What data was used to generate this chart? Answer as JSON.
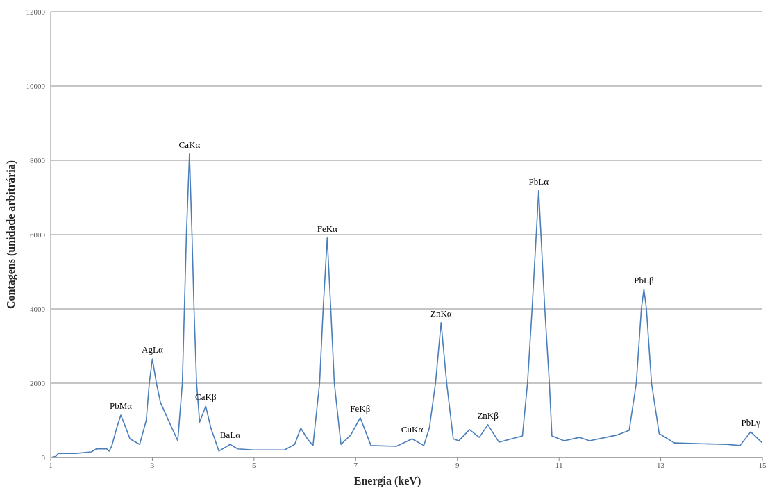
{
  "chart_data": {
    "type": "line",
    "xlabel": "Energia (keV)",
    "ylabel": "Contagens (unidade arbitrária)",
    "xlim": [
      1,
      15
    ],
    "xticks": [
      1,
      3,
      5,
      7,
      9,
      11,
      13,
      15
    ],
    "ylim": [
      0,
      12000
    ],
    "yticks": [
      0,
      2000,
      4000,
      6000,
      8000,
      10000,
      12000
    ],
    "grid": "y",
    "marker": "none",
    "series": [
      {
        "color": "#4a7ebb",
        "x": [
          1.0,
          1.1,
          1.15,
          1.5,
          1.8,
          1.9,
          2.1,
          2.15,
          2.2,
          2.3,
          2.38,
          2.45,
          2.56,
          2.75,
          2.88,
          2.94,
          3.0,
          3.08,
          3.16,
          3.3,
          3.5,
          3.59,
          3.63,
          3.67,
          3.73,
          3.78,
          3.82,
          3.87,
          3.93,
          4.05,
          4.15,
          4.31,
          4.53,
          4.68,
          5.0,
          5.6,
          5.8,
          5.92,
          6.05,
          6.16,
          6.29,
          6.36,
          6.44,
          6.51,
          6.58,
          6.71,
          6.9,
          7.09,
          7.3,
          7.8,
          8.11,
          8.34,
          8.45,
          8.57,
          8.68,
          8.79,
          8.92,
          9.03,
          9.24,
          9.43,
          9.6,
          9.82,
          10.28,
          10.38,
          10.47,
          10.6,
          10.72,
          10.81,
          10.86,
          11.1,
          11.4,
          11.6,
          12.13,
          12.38,
          12.52,
          12.62,
          12.67,
          12.72,
          12.82,
          12.97,
          13.27,
          14.3,
          14.56,
          14.77,
          15.0
        ],
        "values": [
          0,
          30,
          110,
          110,
          150,
          230,
          230,
          170,
          300,
          800,
          1140,
          900,
          500,
          350,
          1000,
          2000,
          2650,
          2000,
          1480,
          1050,
          450,
          2000,
          4000,
          6000,
          8170,
          6000,
          4000,
          2000,
          950,
          1380,
          800,
          170,
          350,
          230,
          200,
          200,
          350,
          790,
          500,
          320,
          2000,
          4000,
          5910,
          4000,
          2000,
          350,
          600,
          1070,
          320,
          300,
          500,
          320,
          800,
          2000,
          3630,
          2000,
          500,
          450,
          750,
          540,
          880,
          410,
          580,
          2000,
          4000,
          7180,
          4000,
          2000,
          580,
          450,
          540,
          450,
          600,
          730,
          2000,
          4000,
          4530,
          4000,
          2000,
          640,
          390,
          350,
          320,
          690,
          390
        ]
      }
    ],
    "annotations": [
      {
        "text": "PbMα",
        "x": 2.38,
        "y": 1140
      },
      {
        "text": "AgLα",
        "x": 3.0,
        "y": 2650
      },
      {
        "text": "CaKα",
        "x": 3.73,
        "y": 8170
      },
      {
        "text": "CaKβ",
        "x": 4.05,
        "y": 1380
      },
      {
        "text": "BaLα",
        "x": 4.53,
        "y": 350
      },
      {
        "text": "FeKα",
        "x": 6.44,
        "y": 5910
      },
      {
        "text": "FeKβ",
        "x": 7.09,
        "y": 1070
      },
      {
        "text": "CuKα",
        "x": 8.11,
        "y": 500
      },
      {
        "text": "ZnKα",
        "x": 8.68,
        "y": 3630
      },
      {
        "text": "ZnKβ",
        "x": 9.6,
        "y": 880
      },
      {
        "text": "PbLα",
        "x": 10.6,
        "y": 7180
      },
      {
        "text": "PbLβ",
        "x": 12.67,
        "y": 4530
      },
      {
        "text": "PbLγ",
        "x": 14.77,
        "y": 690
      }
    ]
  }
}
